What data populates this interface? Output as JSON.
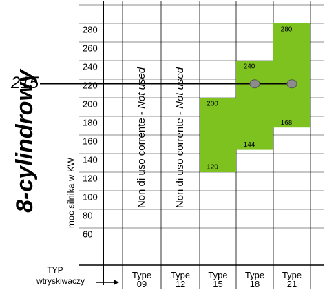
{
  "chart_data": {
    "type": "floating-bar",
    "title": "8-cylindrowy",
    "y_label": "moc silnika w KW",
    "x_label": [
      "TYP",
      "wtryskiwaczy"
    ],
    "categories": [
      "Type 09",
      "Type 12",
      "Type 15",
      "Type 18",
      "Type 21"
    ],
    "low": [
      null,
      null,
      120,
      144,
      168
    ],
    "high": [
      null,
      null,
      200,
      240,
      280
    ],
    "color": "#7dc21e",
    "not_used": [
      "Non di uso corrente - ",
      "Not used"
    ],
    "reference_line": 215,
    "marker_color": "#8c8c8c",
    "ylim": [
      20,
      300
    ],
    "yticks": [
      60,
      80,
      100,
      120,
      140,
      160,
      180,
      200,
      220,
      240,
      260,
      280
    ],
    "grid": true
  }
}
